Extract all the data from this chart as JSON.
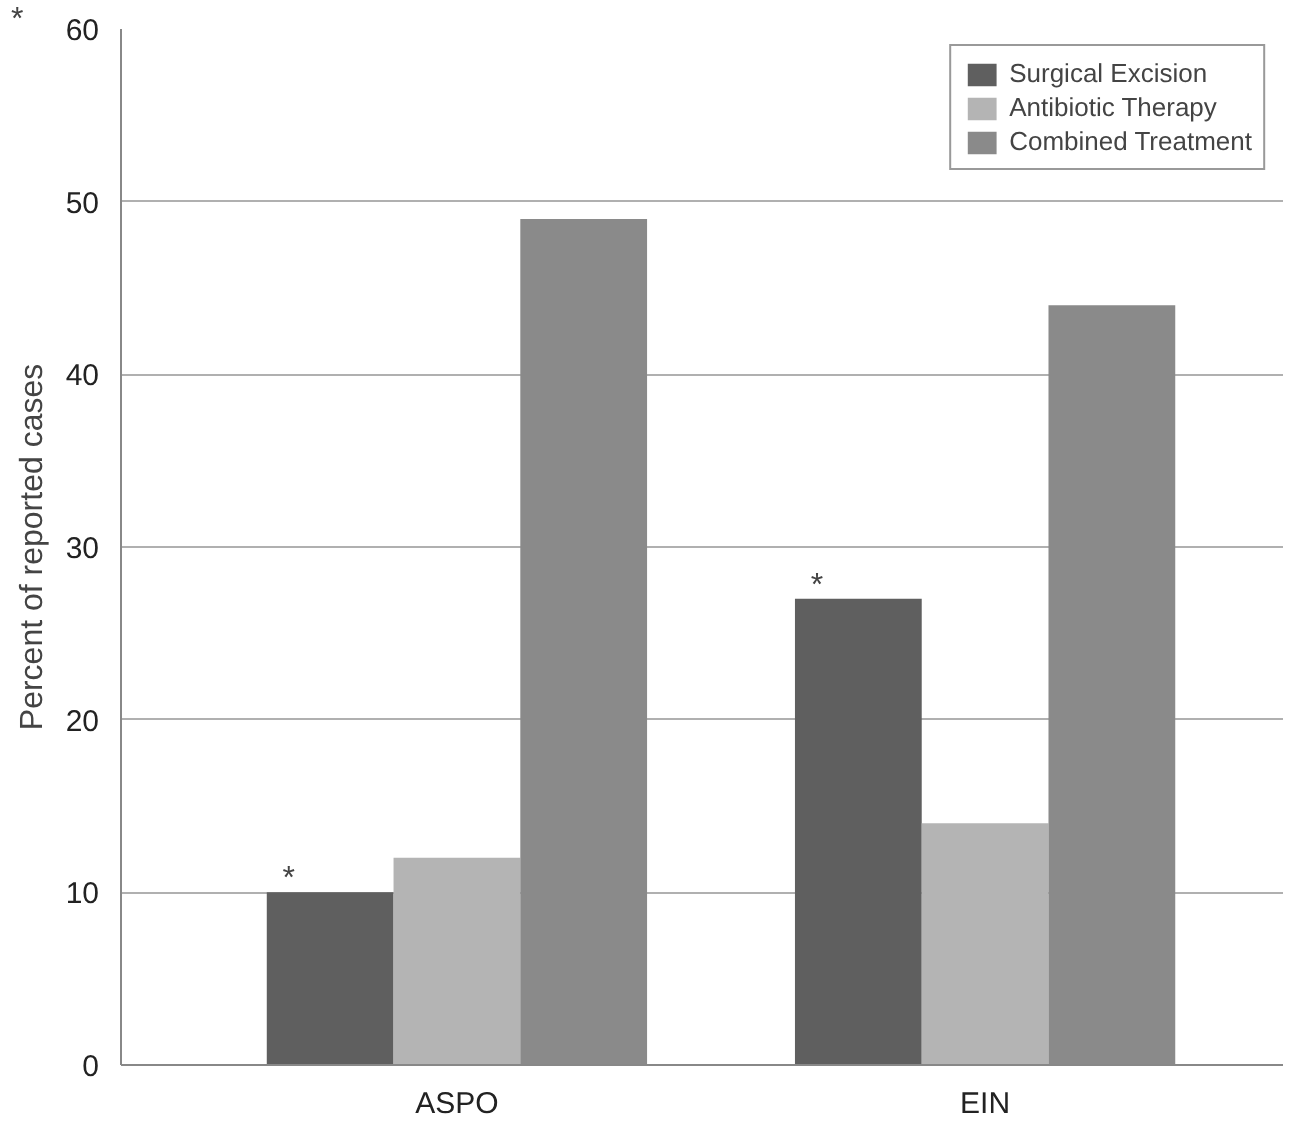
{
  "chart_data": {
    "type": "bar",
    "ylabel": "Percent of reported cases",
    "categories": [
      "ASPO",
      "EIN"
    ],
    "series": [
      {
        "name": "Surgical Excision",
        "color": "#5f5f5f",
        "values": [
          10,
          27
        ]
      },
      {
        "name": "Antibiotic Therapy",
        "color": "#b4b4b4",
        "values": [
          12,
          14
        ]
      },
      {
        "name": "Combined Treatment",
        "color": "#8a8a8a",
        "values": [
          49,
          44
        ]
      }
    ],
    "ylim": [
      0,
      60
    ],
    "yticks": [
      0,
      10,
      20,
      30,
      40,
      50,
      60
    ],
    "grid": "y",
    "legend": "top right",
    "annotations": [
      "*",
      "*",
      "*"
    ]
  }
}
